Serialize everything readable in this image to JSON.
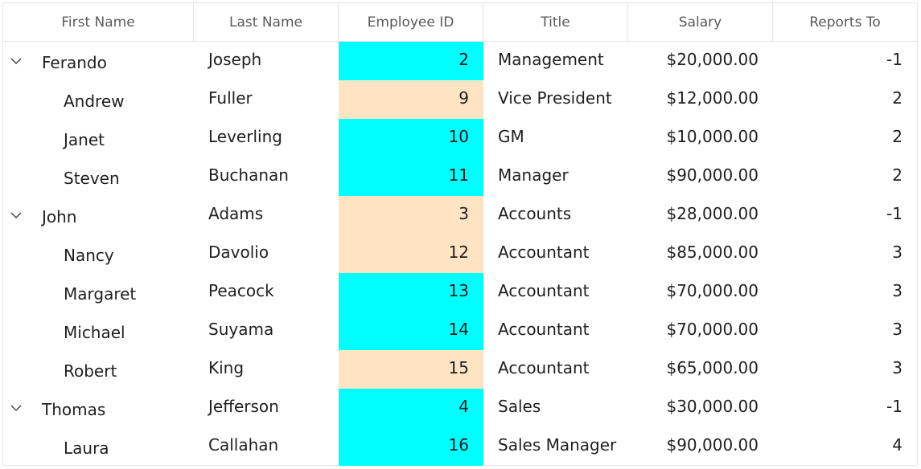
{
  "columns": [
    "First Name",
    "Last Name",
    "Employee ID",
    "Title",
    "Salary",
    "Reports To"
  ],
  "colors": {
    "cyan": "#00FFFF",
    "bisque": "#FFE4C4",
    "border": "#E6E6E6"
  },
  "rows": [
    {
      "first": "Ferando",
      "last": "Joseph",
      "id": "2",
      "title": "Management",
      "salary": "$20,000.00",
      "reports": "-1",
      "level": 0,
      "expanded": true,
      "idColor": "#00FFFF"
    },
    {
      "first": "Andrew",
      "last": "Fuller",
      "id": "9",
      "title": "Vice President",
      "salary": "$12,000.00",
      "reports": "2",
      "level": 1,
      "idColor": "#FFE4C4"
    },
    {
      "first": "Janet",
      "last": "Leverling",
      "id": "10",
      "title": "GM",
      "salary": "$10,000.00",
      "reports": "2",
      "level": 1,
      "idColor": "#00FFFF"
    },
    {
      "first": "Steven",
      "last": "Buchanan",
      "id": "11",
      "title": "Manager",
      "salary": "$90,000.00",
      "reports": "2",
      "level": 1,
      "idColor": "#00FFFF"
    },
    {
      "first": "John",
      "last": "Adams",
      "id": "3",
      "title": "Accounts",
      "salary": "$28,000.00",
      "reports": "-1",
      "level": 0,
      "expanded": true,
      "idColor": "#FFE4C4"
    },
    {
      "first": "Nancy",
      "last": "Davolio",
      "id": "12",
      "title": "Accountant",
      "salary": "$85,000.00",
      "reports": "3",
      "level": 1,
      "idColor": "#FFE4C4"
    },
    {
      "first": "Margaret",
      "last": "Peacock",
      "id": "13",
      "title": "Accountant",
      "salary": "$70,000.00",
      "reports": "3",
      "level": 1,
      "idColor": "#00FFFF"
    },
    {
      "first": "Michael",
      "last": "Suyama",
      "id": "14",
      "title": "Accountant",
      "salary": "$70,000.00",
      "reports": "3",
      "level": 1,
      "idColor": "#00FFFF"
    },
    {
      "first": "Robert",
      "last": "King",
      "id": "15",
      "title": "Accountant",
      "salary": "$65,000.00",
      "reports": "3",
      "level": 1,
      "idColor": "#FFE4C4"
    },
    {
      "first": "Thomas",
      "last": "Jefferson",
      "id": "4",
      "title": "Sales",
      "salary": "$30,000.00",
      "reports": "-1",
      "level": 0,
      "expanded": true,
      "idColor": "#00FFFF"
    },
    {
      "first": "Laura",
      "last": "Callahan",
      "id": "16",
      "title": "Sales Manager",
      "salary": "$90,000.00",
      "reports": "4",
      "level": 1,
      "idColor": "#00FFFF"
    }
  ]
}
